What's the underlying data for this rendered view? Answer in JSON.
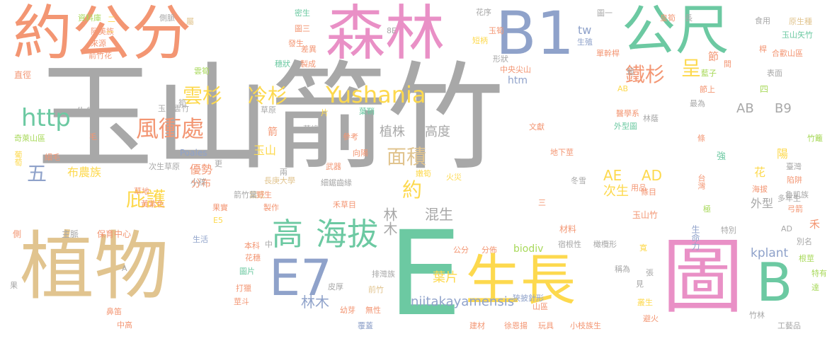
{
  "palette": {
    "gray": "#a8a8a8",
    "tan": "#e1c48f",
    "orange": "#f39673",
    "pink": "#e990c6",
    "blue": "#8fa2ca",
    "green": "#6cc9a2",
    "yellow": "#fdd94e",
    "lime": "#a8d95a"
  },
  "words": [
    "玉山箭竹",
    "植物",
    "約公分",
    "森林",
    "B1",
    "公尺",
    "E",
    "圖",
    "B",
    "生長",
    "E7",
    "高",
    "海拔",
    "Yushania",
    "http",
    "風衝處",
    "雲杉",
    "冷杉",
    "鐵杉",
    "呈",
    "面積",
    "植株",
    "高度",
    "庇護",
    "五",
    "約",
    "林木",
    "混生",
    "AE",
    "AD",
    "AB",
    "B9",
    "葉片",
    "kplant",
    "niitakayamensis",
    "biodiv",
    "林木",
    "次生",
    "外型",
    "陽",
    "花",
    "布農族",
    "優勢",
    "分布",
    "玉山",
    "箭",
    "生物",
    "tw",
    "htm",
    "Poales",
    "資料庫",
    "阿美族",
    "來源",
    "箭竹花",
    "直徑",
    "奇萊山區",
    "葡萄",
    "細毛",
    "毛",
    "黃紫色",
    "草地",
    "次生草原",
    "玉山雲竹",
    "草原",
    "花序",
    "短柄",
    "中央尖山",
    "形狀",
    "生殖",
    "單幹桿",
    "節",
    "間",
    "苞",
    "藍子",
    "節上",
    "最為",
    "四",
    "醫學系",
    "外型圖",
    "文獻",
    "地下莖",
    "強",
    "竹籬",
    "台灣",
    "臺灣",
    "海拔",
    "陷阱",
    "魯凱族",
    "條目",
    "條",
    "極",
    "多年生",
    "弓箭",
    "特別",
    "AD",
    "別名",
    "禾",
    "生命力",
    "玉山竹",
    "材料",
    "宿根性",
    "橄欖形",
    "稱為",
    "張",
    "見",
    "叢生",
    "避火",
    "寬",
    "根莖",
    "特有",
    "達",
    "竹林",
    "工藝品",
    "主脈",
    "保育中心",
    "側",
    "果",
    "鼻笛",
    "中高",
    "莖斗",
    "打獵",
    "圖片",
    "花穗",
    "本科",
    "生活",
    "E5",
    "果實",
    "製作",
    "當成",
    "長庚大學",
    "野生",
    "禾草目",
    "細鋸齒緣",
    "武器",
    "兩",
    "小孩",
    "冬雪",
    "三",
    "排灣族",
    "皮厚",
    "前竹",
    "幼芽",
    "無性",
    "公分",
    "分佈",
    "狹披針形",
    "山區",
    "覆蓋",
    "建材",
    "徐恩揚",
    "玩具",
    "小枝族生",
    "食用",
    "原生種",
    "玉山矢竹",
    "合歡山區",
    "表面",
    "桿",
    "用品",
    "密生",
    "圖三",
    "發生",
    "差異",
    "製成",
    "穗狀",
    "雲筍",
    "屬",
    "側脈",
    "圖一",
    "長",
    "8E",
    "嫩筍",
    "火災",
    "葉鞘",
    "葉緣",
    "參考",
    "向陽",
    "片",
    "A",
    "二",
    "一",
    "林蔭",
    "皇筍",
    "玉筍",
    "中",
    "AB",
    "箭竹葉",
    "更",
    "筍",
    "雲杉",
    "鐵杉",
    "冷杉"
  ]
}
